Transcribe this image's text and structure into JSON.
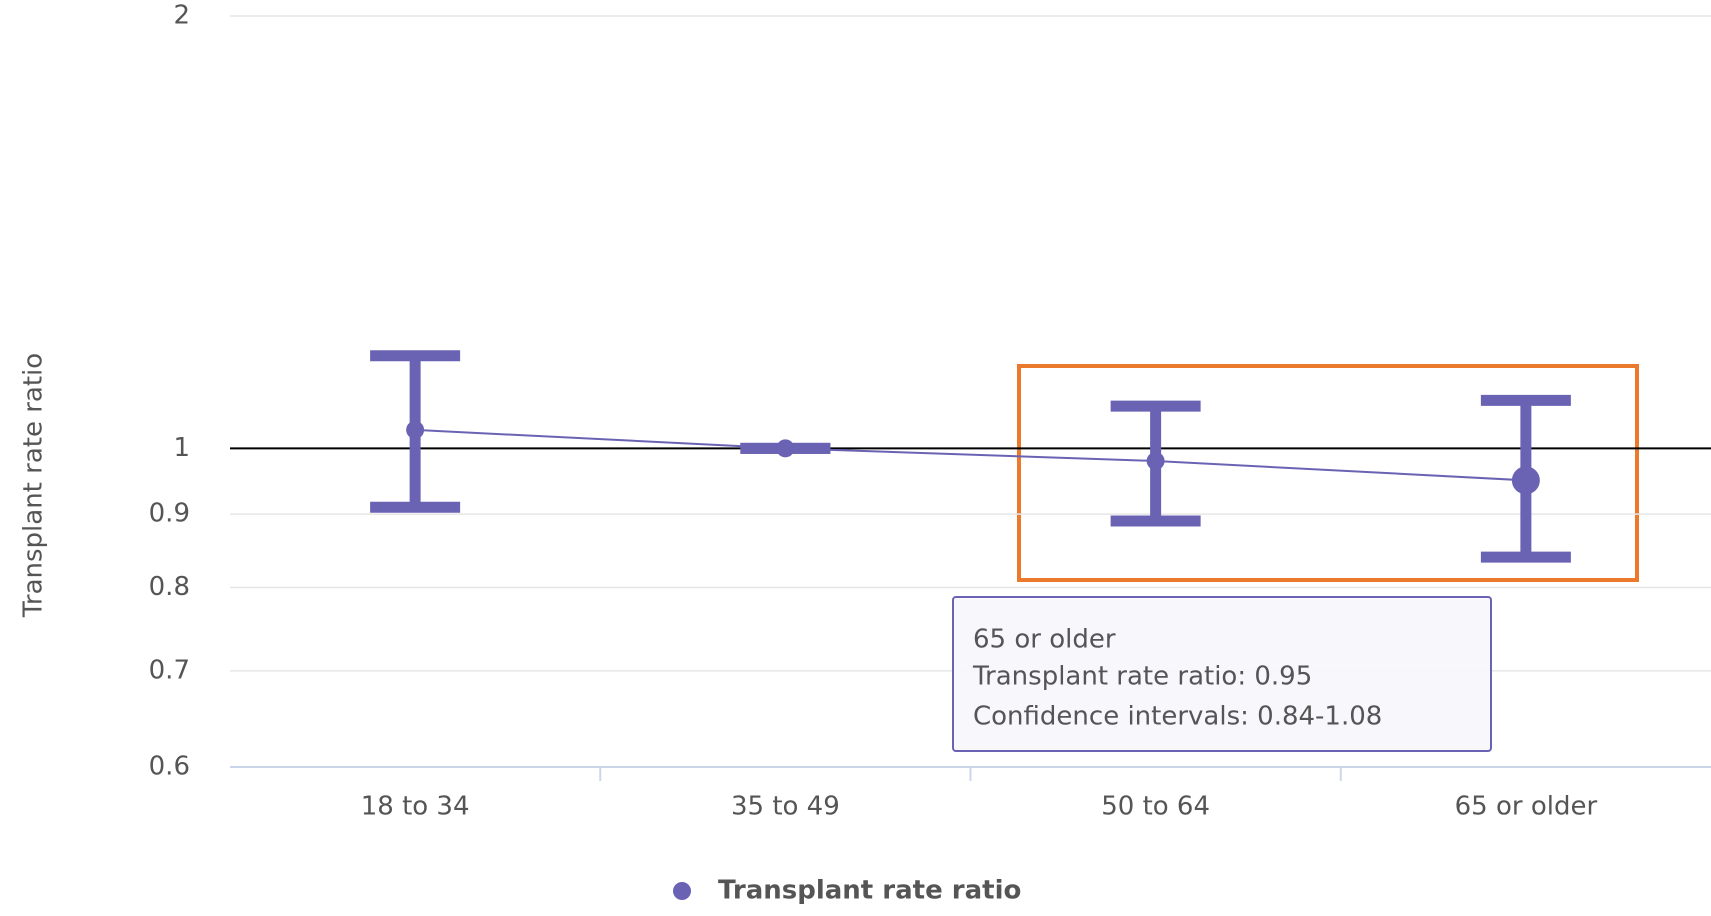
{
  "chart_data": {
    "type": "line",
    "y_axis_label": "Transplant rate ratio",
    "categories": [
      "18 to 34",
      "35 to 49",
      "50 to 64",
      "65 or older"
    ],
    "series": [
      {
        "name": "Transplant rate ratio",
        "color": "#6a63b4",
        "values": [
          1.03,
          1.0,
          0.98,
          0.95
        ],
        "ci_low": [
          0.91,
          1.0,
          0.89,
          0.84
        ],
        "ci_high": [
          1.16,
          1.0,
          1.07,
          1.08
        ]
      }
    ],
    "ylim": [
      0.6,
      2
    ],
    "yticks": [
      0.6,
      0.7,
      0.8,
      0.9,
      1,
      2
    ],
    "log_scale": true,
    "grid": true,
    "reference_line": 1,
    "tooltip": {
      "title": "65 or older",
      "lines": [
        "Transplant rate ratio: 0.95",
        "Confidence intervals: 0.84-1.08"
      ]
    }
  }
}
